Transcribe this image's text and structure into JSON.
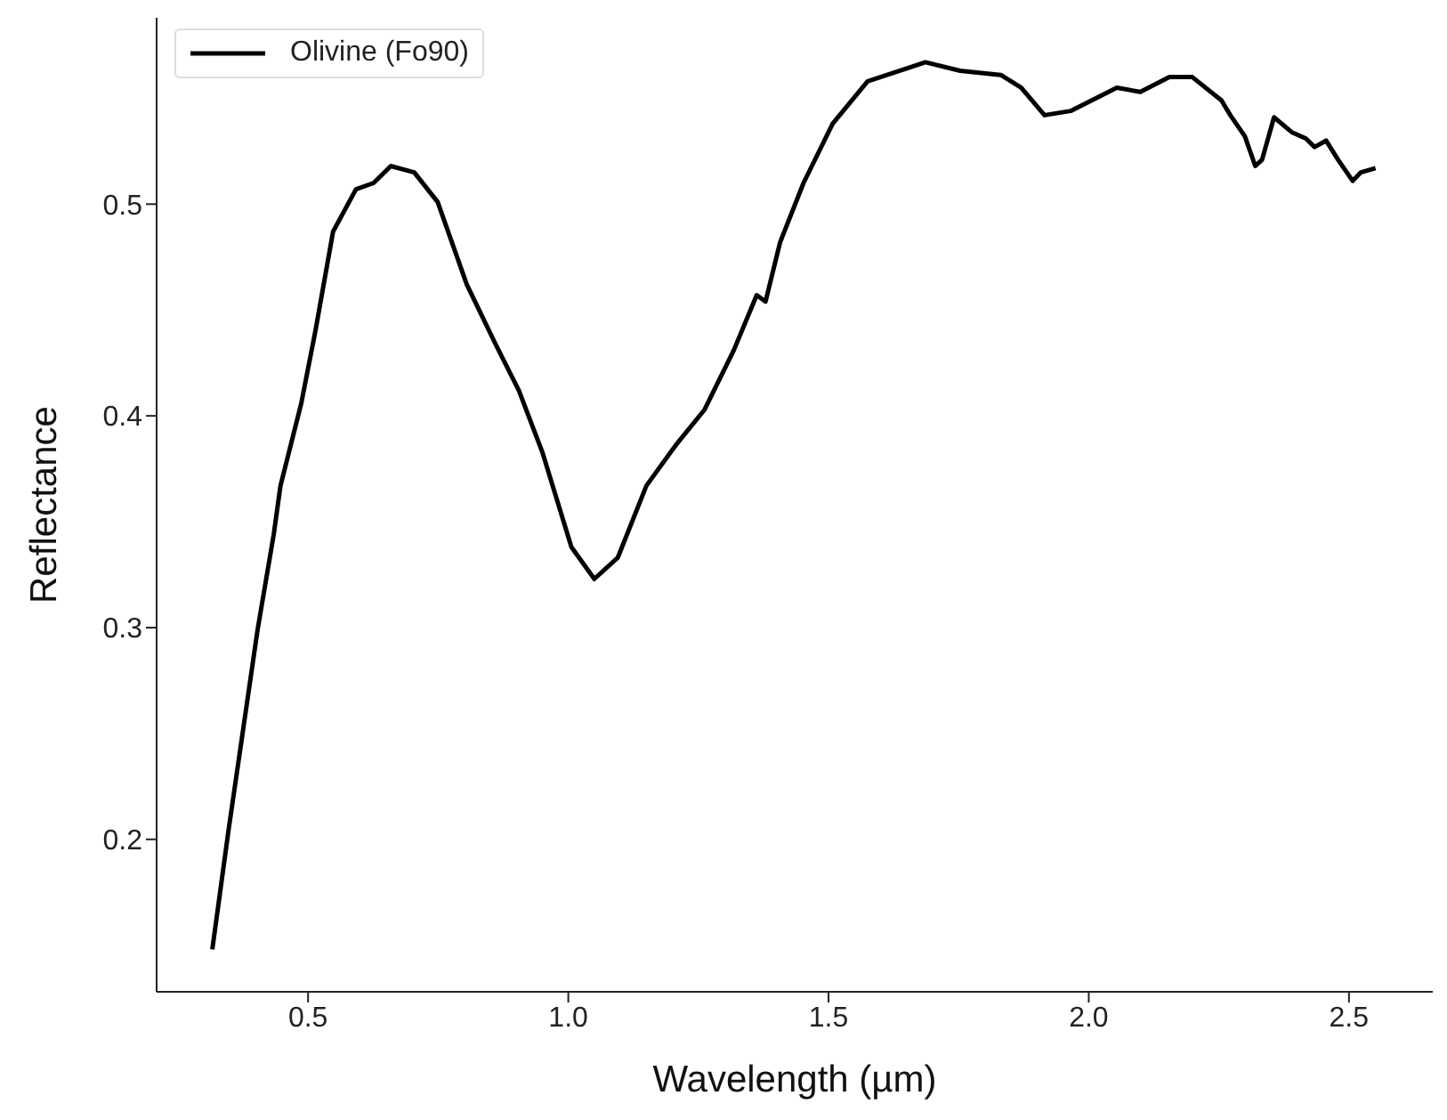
{
  "chart_data": {
    "type": "line",
    "xlabel": "Wavelength (µm)",
    "ylabel": "Reflectance",
    "legend": "top left",
    "grid": false,
    "xlim": [
      0.209,
      2.661
    ],
    "xticks": [
      {
        "value": 0.5,
        "label": "0.5"
      },
      {
        "value": 1.0,
        "label": "1.0"
      },
      {
        "value": 1.5,
        "label": "1.5"
      },
      {
        "value": 2.0,
        "label": "2.0"
      },
      {
        "value": 2.5,
        "label": "2.5"
      }
    ],
    "ylim": [
      0.128,
      0.588
    ],
    "yticks": [
      0.2,
      0.3,
      0.4,
      0.5
    ],
    "x": [
      0.316,
      0.347,
      0.403,
      0.434,
      0.447,
      0.487,
      0.514,
      0.548,
      0.592,
      0.626,
      0.659,
      0.704,
      0.749,
      0.805,
      0.86,
      0.905,
      0.95,
      1.006,
      1.05,
      1.095,
      1.15,
      1.206,
      1.262,
      1.318,
      1.362,
      1.379,
      1.407,
      1.452,
      1.508,
      1.575,
      1.686,
      1.753,
      1.831,
      1.87,
      1.915,
      1.965,
      2.054,
      2.099,
      2.155,
      2.199,
      2.255,
      2.272,
      2.3,
      2.32,
      2.333,
      2.356,
      2.39,
      2.417,
      2.434,
      2.456,
      2.479,
      2.507,
      2.523,
      2.551
    ],
    "series": [
      {
        "name": "Olivine (Fo90)",
        "color": "#000000",
        "values": [
          0.148,
          0.204,
          0.299,
          0.344,
          0.367,
          0.406,
          0.44,
          0.487,
          0.507,
          0.51,
          0.518,
          0.515,
          0.501,
          0.462,
          0.434,
          0.412,
          0.383,
          0.338,
          0.323,
          0.333,
          0.367,
          0.386,
          0.403,
          0.431,
          0.457,
          0.454,
          0.482,
          0.51,
          0.538,
          0.558,
          0.567,
          0.563,
          0.561,
          0.555,
          0.542,
          0.544,
          0.555,
          0.553,
          0.56,
          0.56,
          0.549,
          0.542,
          0.532,
          0.518,
          0.521,
          0.541,
          0.534,
          0.531,
          0.527,
          0.53,
          0.521,
          0.511,
          0.515,
          0.517
        ]
      }
    ]
  }
}
